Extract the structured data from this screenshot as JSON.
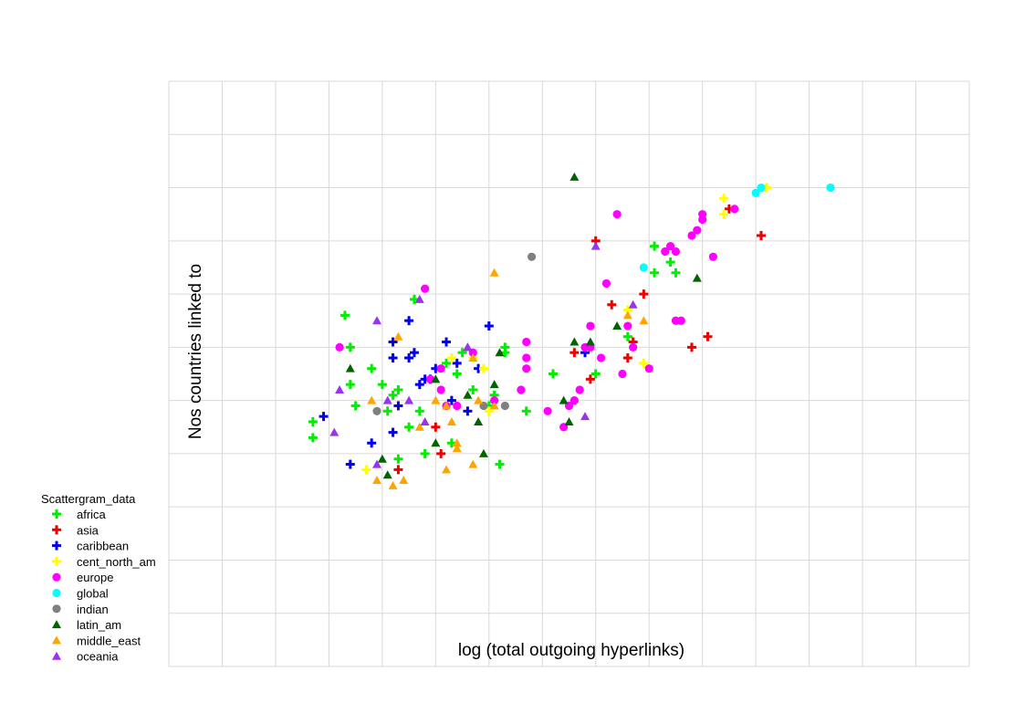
{
  "chart_data": {
    "type": "scatter",
    "title": "",
    "xlabel": "log (total outgoing hyperlinks)",
    "ylabel": "Nos countries linked to",
    "grid": true,
    "legend_position": "bottom-left",
    "legend_title": "Scattergram_data",
    "xlim": [
      0,
      15
    ],
    "ylim": [
      0,
      11
    ],
    "series": [
      {
        "name": "africa",
        "marker": "plus",
        "color": "#00ee00",
        "points": [
          [
            2.7,
            4.6
          ],
          [
            2.7,
            4.3
          ],
          [
            3.3,
            6.6
          ],
          [
            3.4,
            6.0
          ],
          [
            3.4,
            5.3
          ],
          [
            3.5,
            4.9
          ],
          [
            3.8,
            5.6
          ],
          [
            4.0,
            5.3
          ],
          [
            4.1,
            4.8
          ],
          [
            4.2,
            5.1
          ],
          [
            4.3,
            5.2
          ],
          [
            4.3,
            3.9
          ],
          [
            4.5,
            4.5
          ],
          [
            4.6,
            6.9
          ],
          [
            4.7,
            4.8
          ],
          [
            4.8,
            4.0
          ],
          [
            5.2,
            5.7
          ],
          [
            5.3,
            4.2
          ],
          [
            5.4,
            5.5
          ],
          [
            5.5,
            5.9
          ],
          [
            5.7,
            5.2
          ],
          [
            6.0,
            4.9
          ],
          [
            6.1,
            5.1
          ],
          [
            6.2,
            3.8
          ],
          [
            6.3,
            5.9
          ],
          [
            6.3,
            6.0
          ],
          [
            6.7,
            4.8
          ],
          [
            7.2,
            5.5
          ],
          [
            8.0,
            5.5
          ],
          [
            8.6,
            6.2
          ],
          [
            9.1,
            7.4
          ],
          [
            9.4,
            7.6
          ],
          [
            9.1,
            7.9
          ],
          [
            9.5,
            7.4
          ]
        ]
      },
      {
        "name": "asia",
        "marker": "plus",
        "color": "#ee0000",
        "points": [
          [
            4.3,
            3.7
          ],
          [
            5.0,
            4.5
          ],
          [
            5.1,
            4.0
          ],
          [
            7.6,
            5.9
          ],
          [
            7.9,
            5.4
          ],
          [
            8.0,
            8.0
          ],
          [
            8.3,
            6.8
          ],
          [
            8.6,
            5.8
          ],
          [
            8.7,
            6.1
          ],
          [
            8.9,
            7.0
          ],
          [
            9.8,
            6.0
          ],
          [
            10.1,
            6.2
          ],
          [
            10.5,
            8.6
          ],
          [
            11.1,
            8.1
          ]
        ]
      },
      {
        "name": "caribbean",
        "marker": "plus",
        "color": "#0000ee",
        "points": [
          [
            2.9,
            4.7
          ],
          [
            3.4,
            3.8
          ],
          [
            3.8,
            4.2
          ],
          [
            4.2,
            4.4
          ],
          [
            4.2,
            5.8
          ],
          [
            4.2,
            6.1
          ],
          [
            4.3,
            4.9
          ],
          [
            4.5,
            5.8
          ],
          [
            4.6,
            5.9
          ],
          [
            4.5,
            6.5
          ],
          [
            4.7,
            5.3
          ],
          [
            4.8,
            5.4
          ],
          [
            4.9,
            5.4
          ],
          [
            5.0,
            5.6
          ],
          [
            5.2,
            6.1
          ],
          [
            5.3,
            5.0
          ],
          [
            5.4,
            5.7
          ],
          [
            5.6,
            4.8
          ],
          [
            5.8,
            5.6
          ],
          [
            6.0,
            6.4
          ],
          [
            7.8,
            5.9
          ]
        ]
      },
      {
        "name": "cent_north_am",
        "marker": "plus",
        "color": "#ffff00",
        "points": [
          [
            3.7,
            3.7
          ],
          [
            5.3,
            5.8
          ],
          [
            5.7,
            5.8
          ],
          [
            5.9,
            5.6
          ],
          [
            6.0,
            4.8
          ],
          [
            8.6,
            6.7
          ],
          [
            8.9,
            5.7
          ],
          [
            10.4,
            8.5
          ],
          [
            10.4,
            8.8
          ],
          [
            11.2,
            9.0
          ]
        ]
      },
      {
        "name": "europe",
        "marker": "circle",
        "color": "#ff00ff",
        "points": [
          [
            3.2,
            6.0
          ],
          [
            4.8,
            7.1
          ],
          [
            4.9,
            5.4
          ],
          [
            5.1,
            5.6
          ],
          [
            5.1,
            5.2
          ],
          [
            5.2,
            4.9
          ],
          [
            5.4,
            4.9
          ],
          [
            5.7,
            5.9
          ],
          [
            6.1,
            5.0
          ],
          [
            6.6,
            5.2
          ],
          [
            6.7,
            5.6
          ],
          [
            6.7,
            5.8
          ],
          [
            6.7,
            6.1
          ],
          [
            7.1,
            4.8
          ],
          [
            7.4,
            4.5
          ],
          [
            7.5,
            4.9
          ],
          [
            7.6,
            5.0
          ],
          [
            7.7,
            5.2
          ],
          [
            7.8,
            6.0
          ],
          [
            7.9,
            6.0
          ],
          [
            7.9,
            6.4
          ],
          [
            8.1,
            5.8
          ],
          [
            8.4,
            8.5
          ],
          [
            8.2,
            7.2
          ],
          [
            8.6,
            6.4
          ],
          [
            8.5,
            5.5
          ],
          [
            8.7,
            6.0
          ],
          [
            9.0,
            5.6
          ],
          [
            9.3,
            7.8
          ],
          [
            9.4,
            7.9
          ],
          [
            9.5,
            7.8
          ],
          [
            9.5,
            6.5
          ],
          [
            9.6,
            6.5
          ],
          [
            9.8,
            8.1
          ],
          [
            9.9,
            8.2
          ],
          [
            10.0,
            8.5
          ],
          [
            10.0,
            8.4
          ],
          [
            10.2,
            7.7
          ],
          [
            10.6,
            8.6
          ]
        ]
      },
      {
        "name": "global",
        "marker": "circle",
        "color": "#00ffff",
        "points": [
          [
            8.9,
            7.5
          ],
          [
            11.0,
            8.9
          ],
          [
            11.1,
            9.0
          ],
          [
            12.4,
            9.0
          ]
        ]
      },
      {
        "name": "indian",
        "marker": "circle",
        "color": "#808080",
        "points": [
          [
            3.9,
            4.8
          ],
          [
            5.9,
            4.9
          ],
          [
            6.3,
            4.9
          ],
          [
            6.8,
            7.7
          ]
        ]
      },
      {
        "name": "latin_am",
        "marker": "triangle",
        "color": "#006400",
        "points": [
          [
            3.4,
            5.6
          ],
          [
            4.1,
            3.6
          ],
          [
            4.0,
            3.9
          ],
          [
            5.0,
            5.4
          ],
          [
            5.0,
            4.2
          ],
          [
            5.6,
            6.0
          ],
          [
            5.6,
            5.1
          ],
          [
            5.8,
            4.6
          ],
          [
            5.9,
            4.0
          ],
          [
            6.1,
            5.3
          ],
          [
            6.2,
            5.9
          ],
          [
            7.4,
            5.0
          ],
          [
            7.5,
            4.6
          ],
          [
            7.6,
            6.1
          ],
          [
            7.6,
            9.2
          ],
          [
            7.9,
            6.1
          ],
          [
            8.4,
            6.4
          ],
          [
            9.9,
            7.3
          ]
        ]
      },
      {
        "name": "middle_east",
        "marker": "triangle",
        "color": "#ffa500",
        "points": [
          [
            3.8,
            5.0
          ],
          [
            3.9,
            3.5
          ],
          [
            4.2,
            3.4
          ],
          [
            4.3,
            6.2
          ],
          [
            4.4,
            3.5
          ],
          [
            4.7,
            4.5
          ],
          [
            5.0,
            5.0
          ],
          [
            5.2,
            4.9
          ],
          [
            5.2,
            3.7
          ],
          [
            5.3,
            4.6
          ],
          [
            5.4,
            4.1
          ],
          [
            5.4,
            4.2
          ],
          [
            5.7,
            5.8
          ],
          [
            5.7,
            3.8
          ],
          [
            5.8,
            5.0
          ],
          [
            6.1,
            7.4
          ],
          [
            6.1,
            4.9
          ],
          [
            8.6,
            6.6
          ],
          [
            8.9,
            6.5
          ]
        ]
      },
      {
        "name": "oceania",
        "marker": "triangle",
        "color": "#9933ee",
        "points": [
          [
            3.1,
            4.4
          ],
          [
            3.2,
            5.2
          ],
          [
            3.9,
            3.8
          ],
          [
            3.9,
            6.5
          ],
          [
            4.1,
            5.0
          ],
          [
            4.5,
            5.0
          ],
          [
            4.7,
            6.9
          ],
          [
            4.8,
            4.6
          ],
          [
            5.6,
            6.0
          ],
          [
            7.8,
            4.7
          ],
          [
            8.0,
            7.9
          ],
          [
            8.7,
            6.8
          ]
        ]
      }
    ]
  }
}
